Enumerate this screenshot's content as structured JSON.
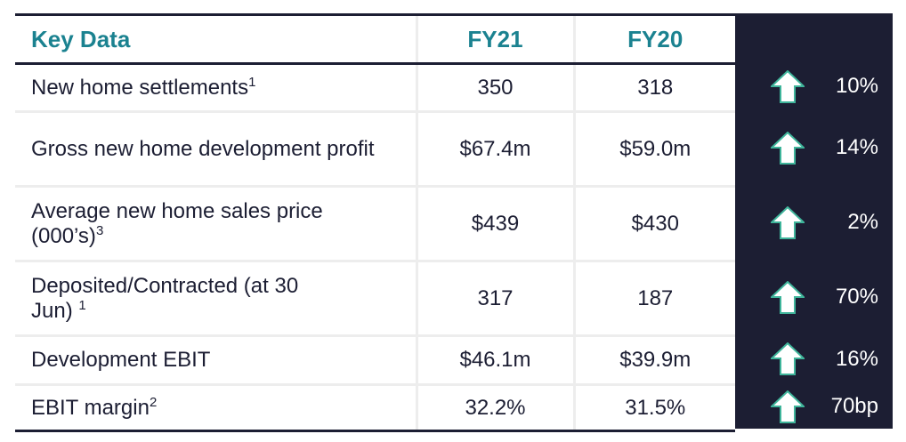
{
  "header": {
    "title": "Key Data",
    "col1": "FY21",
    "col2": "FY20"
  },
  "rows": [
    {
      "label": "New home settlements",
      "sup": "1",
      "fy21": "350",
      "fy20": "318",
      "change": "10%",
      "direction": "up"
    },
    {
      "label": "Gross new home development profit",
      "sup": "",
      "fy21": "$67.4m",
      "fy20": "$59.0m",
      "change": "14%",
      "direction": "up"
    },
    {
      "label": "Average new home sales price (000’s)",
      "sup": "3",
      "fy21": "$439",
      "fy20": "$430",
      "change": "2%",
      "direction": "up"
    },
    {
      "label": "Deposited/Contracted (at 30 Jun)",
      "sup": "1",
      "fy21": "317",
      "fy20": "187",
      "change": "70%",
      "direction": "up"
    },
    {
      "label": "Development EBIT",
      "sup": "",
      "fy21": "$46.1m",
      "fy20": "$39.9m",
      "change": "16%",
      "direction": "up"
    },
    {
      "label": "EBIT margin",
      "sup": "2",
      "fy21": "32.2%",
      "fy20": "31.5%",
      "change": "70bp",
      "direction": "up"
    }
  ],
  "colors": {
    "panel": "#1c1e33",
    "accent": "#1b8290",
    "arrow_outline": "#3fb59b"
  }
}
